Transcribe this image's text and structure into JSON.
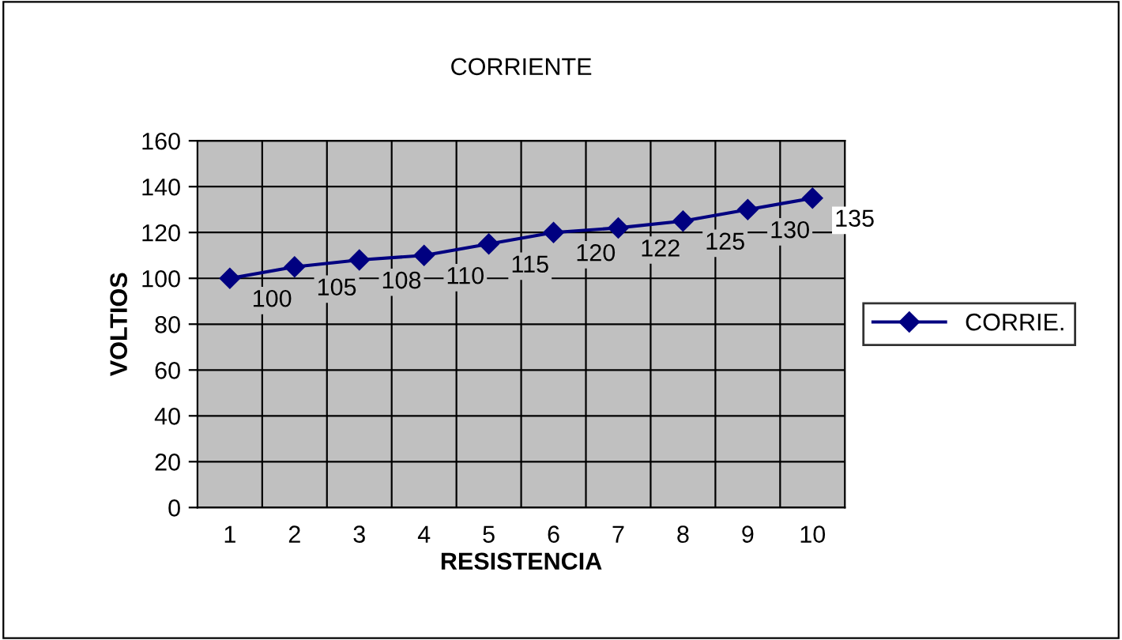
{
  "chart_data": {
    "type": "line",
    "title": "CORRIENTE",
    "xlabel": "RESISTENCIA",
    "ylabel": "VOLTIOS",
    "categories": [
      "1",
      "2",
      "3",
      "4",
      "5",
      "6",
      "7",
      "8",
      "9",
      "10"
    ],
    "series": [
      {
        "name": "CORRIE.",
        "color": "#000080",
        "values": [
          100,
          105,
          108,
          110,
          115,
          120,
          122,
          125,
          130,
          135
        ]
      }
    ],
    "ylim": [
      0,
      160
    ],
    "yticks": [
      0,
      20,
      40,
      60,
      80,
      100,
      120,
      140,
      160
    ],
    "grid": true,
    "legend": "right",
    "marker": "diamond",
    "line_style": "solid",
    "data_labels": true
  }
}
